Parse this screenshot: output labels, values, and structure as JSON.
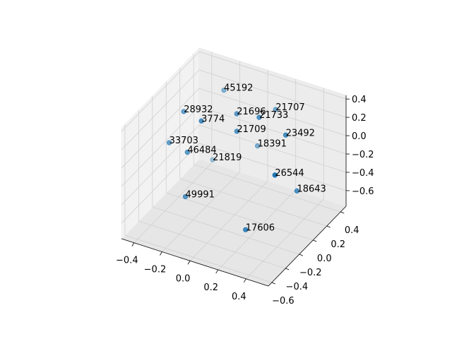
{
  "chart_data": {
    "type": "scatter3d",
    "labels": [
      "45192",
      "28932",
      "3774",
      "21696",
      "21733",
      "21707",
      "21709",
      "23492",
      "33703",
      "18391",
      "46484",
      "21819",
      "26544",
      "18643",
      "49991",
      "17606"
    ],
    "x": [
      -0.2,
      -0.32,
      -0.14,
      0.0,
      0.16,
      0.14,
      0.03,
      0.35,
      -0.37,
      0.04,
      -0.24,
      -0.31,
      0.44,
      0.43,
      -0.2,
      0.23
    ],
    "y": [
      0.25,
      -0.09,
      -0.2,
      0.03,
      0.03,
      0.31,
      -0.03,
      0.03,
      -0.2,
      0.25,
      -0.2,
      0.31,
      -0.31,
      0.03,
      -0.31,
      -0.31
    ],
    "z": [
      0.3,
      0.27,
      0.34,
      0.31,
      0.35,
      0.21,
      0.18,
      0.25,
      -0.01,
      -0.19,
      -0.05,
      -0.56,
      0.12,
      -0.32,
      -0.43,
      -0.58
    ],
    "color": "#1f77b4",
    "xlim": [
      -0.49,
      0.56
    ],
    "ylim": [
      -0.65,
      0.48
    ],
    "zlim": [
      -0.77,
      0.44
    ],
    "xticks": [
      {
        "value": -0.4,
        "label": "−0.4"
      },
      {
        "value": -0.2,
        "label": "−0.2"
      },
      {
        "value": 0.0,
        "label": "0.0"
      },
      0.2,
      0.4
    ],
    "yticks": [
      {
        "value": -0.6,
        "label": "−0.6"
      },
      {
        "value": -0.4,
        "label": "−0.4"
      },
      {
        "value": -0.2,
        "label": "−0.2"
      },
      {
        "value": 0.0,
        "label": "0.0"
      },
      0.2,
      0.4
    ],
    "zticks": [
      {
        "value": -0.6,
        "label": "−0.6"
      },
      {
        "value": -0.4,
        "label": "−0.4"
      },
      {
        "value": -0.2,
        "label": "−0.2"
      },
      {
        "value": 0.0,
        "label": "0.0"
      },
      0.2,
      0.4
    ],
    "grid": true
  }
}
